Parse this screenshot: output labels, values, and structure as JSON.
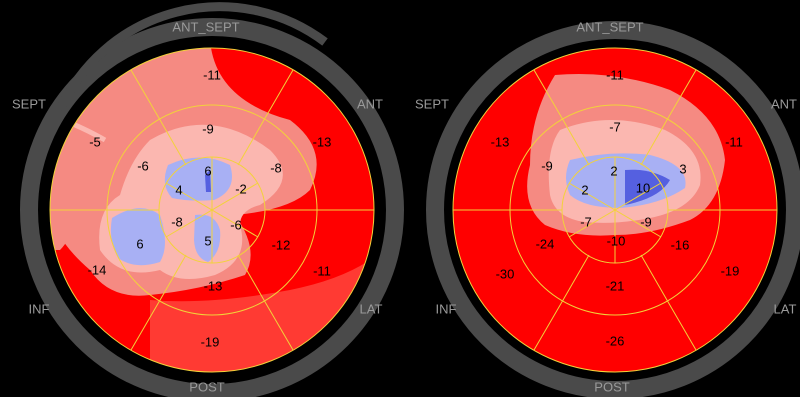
{
  "colors": {
    "background": "#000000",
    "ring": "#555555",
    "red": "#ff0000",
    "red_mid": "#ff3a33",
    "pink": "#f58a82",
    "light_pink": "#fbb7b0",
    "blue": "#a8b0f4",
    "dark_blue": "#5560e0",
    "grid": "#f2d23a"
  },
  "wall_labels": {
    "ant_sept": "ANT_SEPT",
    "sept": "SEPT",
    "ant": "ANT",
    "inf": "INF",
    "lat": "LAT",
    "post": "POST"
  },
  "plots": [
    {
      "segments": {
        "outer_top": "-11",
        "outer_upper_left": "-5",
        "outer_upper_right": "-13",
        "outer_lower_left": "-14",
        "outer_lower_right": "-11",
        "outer_bottom": "-19",
        "mid_upper_left": "-6",
        "mid_top": "-9",
        "mid_upper_right": "-8",
        "mid_lower_right": "-12",
        "mid_bottom": "-13",
        "mid_lower_left": "6",
        "inner_top": "6",
        "inner_left": "4",
        "inner_right": "-2",
        "inner_lower_left": "-8",
        "inner_lower_right": "-6",
        "inner_bottom": "5"
      }
    },
    {
      "segments": {
        "outer_top": "-11",
        "outer_upper_left": "-13",
        "outer_upper_right": "-11",
        "outer_lower_left": "-30",
        "outer_lower_right": "-19",
        "outer_bottom": "-26",
        "mid_upper_left": "-9",
        "mid_top": "-7",
        "mid_upper_right": "3",
        "mid_lower_right": "-16",
        "mid_bottom": "-21",
        "mid_lower_left": "-24",
        "inner_top": "2",
        "inner_left": "2",
        "inner_right": "10",
        "inner_lower_left": "-7",
        "inner_lower_right": "-9",
        "inner_bottom": "-10"
      }
    }
  ]
}
